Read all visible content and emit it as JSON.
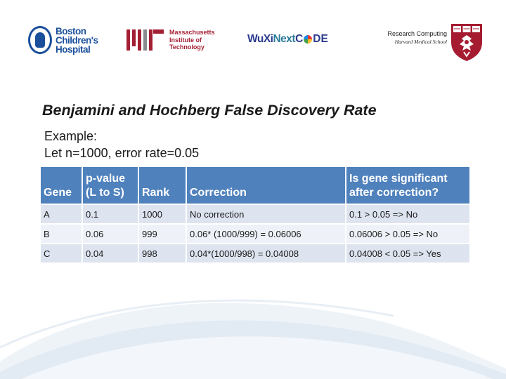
{
  "logos": {
    "bch": {
      "line1": "Boston",
      "line2": "Children's",
      "line3": "Hospital"
    },
    "mit": {
      "line1": "Massachusetts",
      "line2": "Institute of",
      "line3": "Technology"
    },
    "wuxi": {
      "part1": "WuXi",
      "part2": "Next",
      "part3": "C",
      "part4": "DE"
    },
    "research": {
      "line1": "Research Computing",
      "line2": "Harvard Medical School"
    }
  },
  "slide": {
    "title": "Benjamini and Hochberg False Discovery Rate",
    "example_line1": "Example:",
    "example_line2": "Let  n=1000, error rate=0.05"
  },
  "table": {
    "headers": [
      "Gene",
      "p-value (L to S)",
      "Rank",
      "Correction",
      "Is gene significant after correction?"
    ],
    "rows": [
      [
        "A",
        "0.1",
        "1000",
        "No correction",
        "0.1 > 0.05 => No"
      ],
      [
        "B",
        "0.06",
        "999",
        "0.06* (1000/999) = 0.06006",
        "0.06006 > 0.05 => No"
      ],
      [
        "C",
        "0.04",
        "998",
        "0.04*(1000/998) = 0.04008",
        "0.04008 < 0.05 => Yes"
      ]
    ]
  },
  "colors": {
    "header_bg": "#4f81bd",
    "row_light": "#dde4ef",
    "row_lighter": "#eef2f8",
    "bch_blue": "#1a4f9c",
    "mit_red": "#a31f34",
    "harvard_crimson": "#a51c30"
  }
}
